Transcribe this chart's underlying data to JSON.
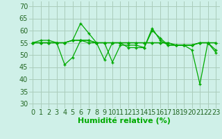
{
  "xlabel": "Humidité relative (%)",
  "background_color": "#cff0e8",
  "grid_color": "#aaccbb",
  "line_color": "#00aa00",
  "ylim": [
    28,
    72
  ],
  "xlim": [
    -0.5,
    23.5
  ],
  "yticks": [
    30,
    35,
    40,
    45,
    50,
    55,
    60,
    65,
    70
  ],
  "xticks": [
    0,
    1,
    2,
    3,
    4,
    5,
    6,
    7,
    8,
    9,
    10,
    11,
    12,
    13,
    14,
    15,
    16,
    17,
    18,
    19,
    20,
    21,
    22,
    23
  ],
  "series": [
    [
      55,
      55,
      55,
      55,
      55,
      56,
      63,
      59,
      55,
      55,
      47,
      54,
      54,
      54,
      53,
      60,
      57,
      54,
      54,
      54,
      54,
      55,
      55,
      51
    ],
    [
      55,
      55,
      55,
      55,
      55,
      56,
      56,
      55,
      55,
      55,
      55,
      55,
      55,
      55,
      55,
      55,
      55,
      55,
      54,
      54,
      54,
      55,
      55,
      55
    ],
    [
      55,
      56,
      56,
      55,
      46,
      49,
      56,
      56,
      55,
      48,
      55,
      55,
      53,
      53,
      53,
      61,
      56,
      54,
      54,
      54,
      52,
      38,
      55,
      52
    ],
    [
      55,
      55,
      55,
      55,
      55,
      56,
      56,
      56,
      55,
      55,
      55,
      55,
      55,
      55,
      55,
      55,
      55,
      55,
      54,
      54,
      54,
      55,
      55,
      55
    ]
  ],
  "xlabel_fontsize": 8,
  "tick_fontsize": 7
}
